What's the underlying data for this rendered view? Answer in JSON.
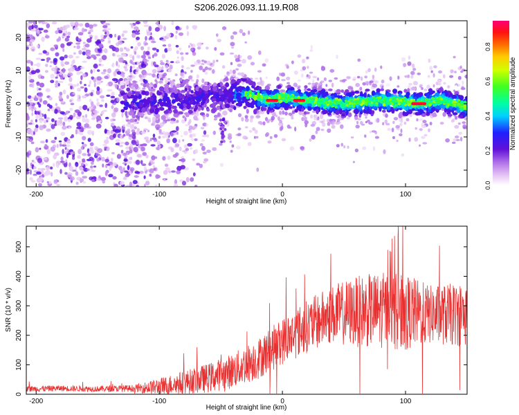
{
  "figure_title": "S206.2026.093.11.19.R08",
  "colors": {
    "snr_line": "#e83030",
    "frame": "#000000",
    "background": "#ffffff"
  },
  "chart_data": [
    {
      "type": "heatmap",
      "title": "S206.2026.093.11.19.R08",
      "xlabel": "Height of straight line (km)",
      "ylabel": "Frequency (Hz)",
      "xlim": [
        -208,
        150
      ],
      "ylim": [
        -25,
        25
      ],
      "x_ticks": [
        -200,
        -100,
        0,
        100
      ],
      "y_ticks": [
        -20,
        -10,
        0,
        10,
        20
      ],
      "colorbar": {
        "label": "Normalized spectral amplitude",
        "range": [
          0.0,
          0.95
        ],
        "ticks": [
          0.0,
          0.2,
          0.4,
          0.6,
          0.8
        ],
        "tick_labels": [
          "0.0",
          "0.2",
          "0.4",
          "0.6",
          "0.8"
        ]
      },
      "description_points": {
        "noise_region_x": [
          -208,
          -115
        ],
        "signal_trace_x": [
          -130,
          150
        ],
        "signal_trace_y": [
          {
            "x": -100,
            "y": 0.5
          },
          {
            "x": -60,
            "y": 2
          },
          {
            "x": -30,
            "y": 3
          },
          {
            "x": -10,
            "y": 1
          },
          {
            "x": 0,
            "y": 2
          },
          {
            "x": 20,
            "y": 1
          },
          {
            "x": 50,
            "y": 0
          },
          {
            "x": 80,
            "y": 1
          },
          {
            "x": 110,
            "y": 0
          },
          {
            "x": 130,
            "y": 1
          },
          {
            "x": 150,
            "y": -1
          }
        ]
      }
    },
    {
      "type": "line",
      "xlabel": "Height of straight line (km)",
      "ylabel": "SNR (10 * v/v)",
      "xlim": [
        -208,
        150
      ],
      "ylim": [
        0,
        570
      ],
      "x_ticks": [
        -200,
        -100,
        0,
        100
      ],
      "y_ticks": [
        0,
        100,
        200,
        300,
        400,
        500
      ],
      "series": [
        {
          "name": "SNR",
          "x": [
            -208,
            -180,
            -150,
            -120,
            -100,
            -80,
            -60,
            -40,
            -20,
            0,
            20,
            40,
            60,
            80,
            100,
            120,
            150
          ],
          "values": [
            18,
            20,
            18,
            20,
            25,
            40,
            55,
            80,
            120,
            180,
            230,
            270,
            280,
            285,
            280,
            270,
            270
          ],
          "spread": [
            10,
            10,
            10,
            12,
            30,
            40,
            50,
            60,
            70,
            80,
            90,
            100,
            120,
            130,
            130,
            100,
            110
          ]
        }
      ]
    }
  ]
}
